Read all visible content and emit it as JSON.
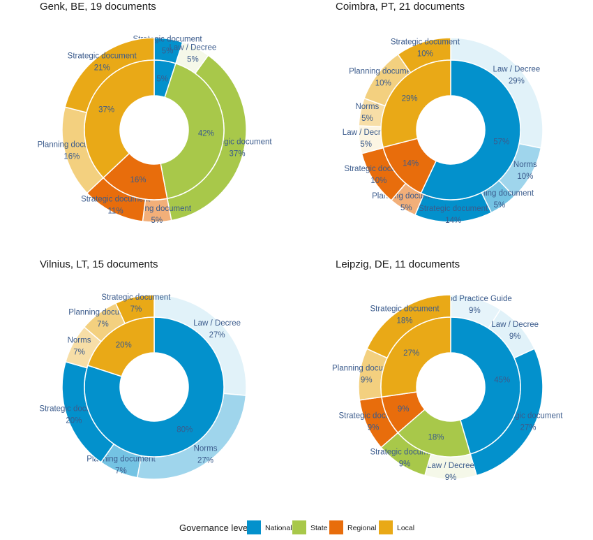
{
  "colors": {
    "National": "#0391cc",
    "State": "#a8c84a",
    "Regional": "#e86d0c",
    "Local": "#e9a917"
  },
  "legend": {
    "title": "Governance level",
    "items": [
      "National",
      "State",
      "Regional",
      "Local"
    ]
  },
  "chart_data": [
    {
      "type": "sunburst",
      "title": "Genk, BE, 19 documents",
      "inner": [
        {
          "level": "National",
          "value": 5,
          "label": "5%"
        },
        {
          "level": "State",
          "value": 42,
          "label": "42%"
        },
        {
          "level": "Regional",
          "value": 16,
          "label": "16%"
        },
        {
          "level": "Local",
          "value": 37,
          "label": "37%"
        }
      ],
      "outer": [
        {
          "level": "National",
          "name": "Strategic document",
          "value": 5,
          "label": "5%"
        },
        {
          "level": "State",
          "name": "Law / Decree",
          "value": 5,
          "label": "5%"
        },
        {
          "level": "State",
          "name": "Strategic document",
          "value": 37,
          "label": "37%"
        },
        {
          "level": "Regional",
          "name": "Planning document",
          "value": 5,
          "label": "5%"
        },
        {
          "level": "Regional",
          "name": "Strategic document",
          "value": 11,
          "label": "11%"
        },
        {
          "level": "Local",
          "name": "Planning document",
          "value": 16,
          "label": "16%"
        },
        {
          "level": "Local",
          "name": "Strategic document",
          "value": 21,
          "label": "21%"
        }
      ]
    },
    {
      "type": "sunburst",
      "title": "Coimbra, PT, 21 documents",
      "inner": [
        {
          "level": "National",
          "value": 57,
          "label": "57%"
        },
        {
          "level": "Regional",
          "value": 14,
          "label": "14%"
        },
        {
          "level": "Local",
          "value": 29,
          "label": "29%"
        }
      ],
      "outer": [
        {
          "level": "National",
          "name": "Law / Decree",
          "value": 29,
          "label": "29%"
        },
        {
          "level": "National",
          "name": "Norms",
          "value": 10,
          "label": "10%"
        },
        {
          "level": "National",
          "name": "Planning document",
          "value": 5,
          "label": "5%"
        },
        {
          "level": "National",
          "name": "Strategic document",
          "value": 14,
          "label": "14%"
        },
        {
          "level": "Regional",
          "name": "Planning document",
          "value": 5,
          "label": "5%"
        },
        {
          "level": "Regional",
          "name": "Strategic document",
          "value": 10,
          "label": "10%"
        },
        {
          "level": "Local",
          "name": "Law / Decree",
          "value": 5,
          "label": "5%"
        },
        {
          "level": "Local",
          "name": "Norms",
          "value": 5,
          "label": "5%"
        },
        {
          "level": "Local",
          "name": "Planning document",
          "value": 10,
          "label": "10%"
        },
        {
          "level": "Local",
          "name": "Strategic document",
          "value": 10,
          "label": "10%"
        }
      ]
    },
    {
      "type": "sunburst",
      "title": "Vilnius, LT, 15 documents",
      "inner": [
        {
          "level": "National",
          "value": 80,
          "label": "80%"
        },
        {
          "level": "Local",
          "value": 20,
          "label": "20%"
        }
      ],
      "outer": [
        {
          "level": "National",
          "name": "Law / Decree",
          "value": 27,
          "label": "27%"
        },
        {
          "level": "National",
          "name": "Norms",
          "value": 27,
          "label": "27%"
        },
        {
          "level": "National",
          "name": "Planning document",
          "value": 7,
          "label": "7%"
        },
        {
          "level": "National",
          "name": "Strategic document",
          "value": 20,
          "label": "20%"
        },
        {
          "level": "Local",
          "name": "Norms",
          "value": 7,
          "label": "7%"
        },
        {
          "level": "Local",
          "name": "Planning document",
          "value": 7,
          "label": "7%"
        },
        {
          "level": "Local",
          "name": "Strategic document",
          "value": 7,
          "label": "7%"
        }
      ]
    },
    {
      "type": "sunburst",
      "title": "Leipzig, DE, 11 documents",
      "inner": [
        {
          "level": "National",
          "value": 45,
          "label": "45%"
        },
        {
          "level": "State",
          "value": 18,
          "label": "18%"
        },
        {
          "level": "Regional",
          "value": 9,
          "label": "9%"
        },
        {
          "level": "Local",
          "value": 27,
          "label": "27%"
        }
      ],
      "outer": [
        {
          "level": "National",
          "name": "Good Practice Guide",
          "value": 9,
          "label": "9%"
        },
        {
          "level": "National",
          "name": "Law / Decree",
          "value": 9,
          "label": "9%"
        },
        {
          "level": "National",
          "name": "Strategic document",
          "value": 27,
          "label": "27%"
        },
        {
          "level": "State",
          "name": "Law / Decree",
          "value": 9,
          "label": "9%"
        },
        {
          "level": "State",
          "name": "Strategic document",
          "value": 9,
          "label": "9%"
        },
        {
          "level": "Regional",
          "name": "Strategic document",
          "value": 9,
          "label": "9%"
        },
        {
          "level": "Local",
          "name": "Planning document",
          "value": 9,
          "label": "9%"
        },
        {
          "level": "Local",
          "name": "Strategic document",
          "value": 18,
          "label": "18%"
        }
      ]
    }
  ]
}
